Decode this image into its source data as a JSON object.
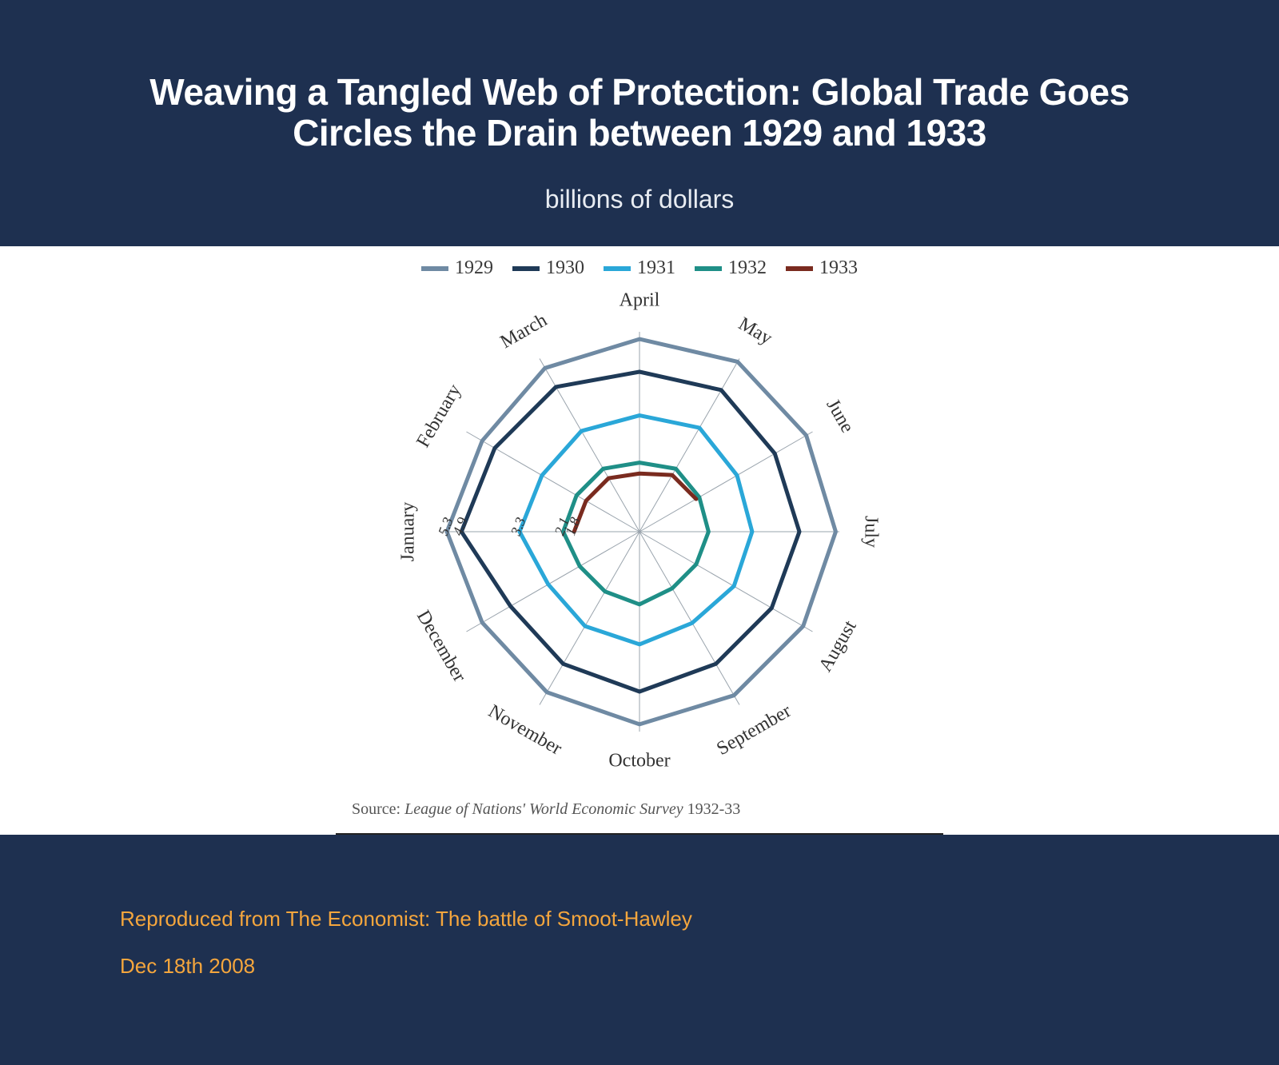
{
  "slide": {
    "background_color": "#1e3050",
    "title": "Weaving a Tangled Web of Protection: Global Trade Goes Circles the Drain between 1929 and 1933",
    "subtitle": "billions of dollars",
    "title_fontsize": 46,
    "subtitle_fontsize": 32,
    "title_color": "#ffffff"
  },
  "chart": {
    "type": "radar-polygon",
    "months": [
      "April",
      "May",
      "June",
      "July",
      "August",
      "September",
      "October",
      "November",
      "December",
      "January",
      "February",
      "March"
    ],
    "months_display": [
      "January",
      "February",
      "March",
      "April",
      "May",
      "June",
      "July",
      "August",
      "September",
      "October",
      "November",
      "December"
    ],
    "axis_start_angle_deg": -90,
    "radial_max": 5.5,
    "radial_ticks": [
      5.3,
      4.9,
      3.3,
      2.1,
      1.8
    ],
    "series": [
      {
        "name": "1929",
        "color": "#6f8aa3",
        "width": 5,
        "values": {
          "January": 5.3,
          "February": 5.0,
          "March": 5.2,
          "April": 5.3,
          "May": 5.4,
          "June": 5.3,
          "July": 5.4,
          "August": 5.2,
          "September": 5.2,
          "October": 5.3,
          "November": 5.1,
          "December": 5.0
        }
      },
      {
        "name": "1930",
        "color": "#1f3a57",
        "width": 5,
        "values": {
          "January": 4.9,
          "February": 4.6,
          "March": 4.6,
          "April": 4.4,
          "May": 4.5,
          "June": 4.3,
          "July": 4.4,
          "August": 4.2,
          "September": 4.2,
          "October": 4.4,
          "November": 4.2,
          "December": 4.1
        }
      },
      {
        "name": "1931",
        "color": "#2aa7d8",
        "width": 5,
        "values": {
          "January": 3.3,
          "February": 3.1,
          "March": 3.2,
          "April": 3.2,
          "May": 3.3,
          "June": 3.1,
          "July": 3.1,
          "August": 3.0,
          "September": 2.9,
          "October": 3.1,
          "November": 3.0,
          "December": 2.9
        }
      },
      {
        "name": "1932",
        "color": "#1f8f87",
        "width": 5,
        "values": {
          "January": 2.1,
          "February": 2.0,
          "March": 2.0,
          "April": 1.9,
          "May": 2.0,
          "June": 1.9,
          "July": 1.9,
          "August": 1.8,
          "September": 1.8,
          "October": 2.0,
          "November": 1.9,
          "December": 1.9
        }
      },
      {
        "name": "1933",
        "color": "#7a2b1f",
        "width": 5,
        "values": {
          "January": 1.8,
          "February": 1.7,
          "March": 1.7,
          "April": 1.6,
          "May": 1.8,
          "June": 1.8
        }
      }
    ],
    "spoke_color": "#9aa4ad",
    "spoke_width": 1,
    "background_color": "#ffffff",
    "month_label_fontsize": 24,
    "axis_label_fontsize": 18,
    "source_label": "Source:",
    "source_text": "League of Nations' World Economic Survey",
    "source_years": "1932-33"
  },
  "legend": {
    "items": [
      {
        "label": "1929",
        "color": "#6f8aa3"
      },
      {
        "label": "1930",
        "color": "#1f3a57"
      },
      {
        "label": "1931",
        "color": "#2aa7d8"
      },
      {
        "label": "1932",
        "color": "#1f8f87"
      },
      {
        "label": "1933",
        "color": "#7a2b1f"
      }
    ],
    "swatch_width": 34,
    "swatch_height": 6,
    "fontsize": 24
  },
  "footer": {
    "attribution": "Reproduced from The Economist: The battle of Smoot-Hawley",
    "pubdate": "Dec 18th 2008",
    "text_color": "#f5a63d",
    "fontsize": 26
  }
}
